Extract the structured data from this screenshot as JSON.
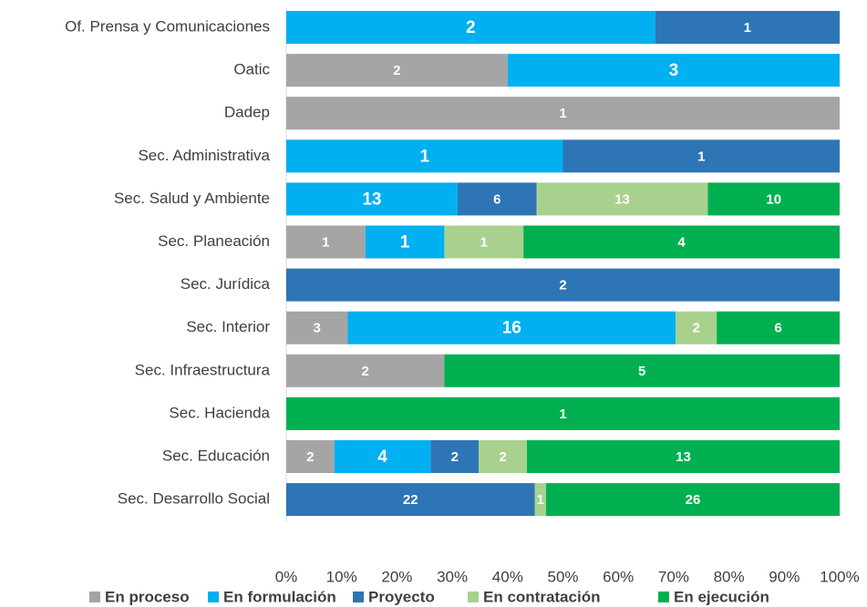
{
  "chart_data": {
    "type": "bar",
    "orientation": "horizontal",
    "stacking": "percent",
    "categories": [
      "Of. Prensa y Comunicaciones",
      "Oatic",
      "Dadep",
      "Sec. Administrativa",
      "Sec. Salud y Ambiente",
      "Sec. Planeación",
      "Sec. Jurídica",
      "Sec. Interior",
      "Sec. Infraestructura",
      "Sec. Hacienda",
      "Sec. Educación",
      "Sec. Desarrollo Social"
    ],
    "series": [
      {
        "name": "En proceso",
        "color": "#a5a5a5",
        "values": [
          null,
          2,
          1,
          null,
          null,
          1,
          null,
          3,
          2,
          null,
          2,
          null
        ]
      },
      {
        "name": "En formulación",
        "color": "#00b0f0",
        "values": [
          2,
          3,
          null,
          1,
          13,
          1,
          null,
          16,
          null,
          null,
          4,
          null
        ]
      },
      {
        "name": "Proyecto",
        "color": "#2e75b6",
        "values": [
          1,
          null,
          null,
          1,
          6,
          null,
          2,
          null,
          null,
          null,
          2,
          22
        ]
      },
      {
        "name": "En contratación",
        "color": "#a9d18e",
        "values": [
          null,
          null,
          null,
          null,
          13,
          1,
          null,
          2,
          null,
          null,
          2,
          1
        ]
      },
      {
        "name": "En ejecución",
        "color": "#00b050",
        "values": [
          null,
          null,
          null,
          null,
          10,
          4,
          null,
          6,
          5,
          1,
          13,
          26
        ]
      }
    ],
    "xlim": [
      0,
      100
    ],
    "xticks": [
      {
        "value": 0,
        "label": "0%"
      },
      {
        "value": 10,
        "label": "10%"
      },
      {
        "value": 20,
        "label": "20%"
      },
      {
        "value": 30,
        "label": "30%"
      },
      {
        "value": 40,
        "label": "40%"
      },
      {
        "value": 50,
        "label": "50%"
      },
      {
        "value": 60,
        "label": "60%"
      },
      {
        "value": 70,
        "label": "70%"
      },
      {
        "value": 80,
        "label": "80%"
      },
      {
        "value": 90,
        "label": "90%"
      },
      {
        "value": 100,
        "label": "100%"
      }
    ],
    "grid": false,
    "legend": "bottom"
  }
}
